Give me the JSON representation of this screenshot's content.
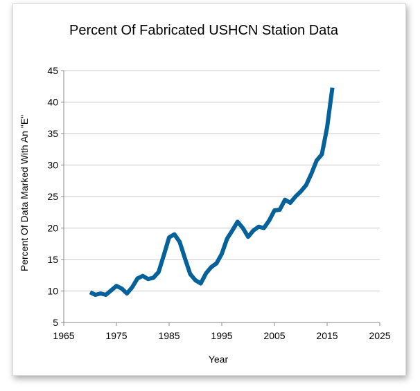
{
  "chart_data": {
    "type": "line",
    "title": "Percent Of Fabricated USHCN Station Data",
    "xlabel": "Year",
    "ylabel": "Percent Of Data Marked With An \"E\"",
    "xlim": [
      1965,
      2025
    ],
    "ylim": [
      5,
      45
    ],
    "xticks": [
      1965,
      1975,
      1985,
      1995,
      2005,
      2015,
      2025
    ],
    "yticks": [
      5,
      10,
      15,
      20,
      25,
      30,
      35,
      40,
      45
    ],
    "grid": "horizontal",
    "legend": "none",
    "series": [
      {
        "name": "Percent Of Data Marked With An \"E\"",
        "color": "#04619a",
        "x": [
          1970,
          1971,
          1972,
          1973,
          1974,
          1975,
          1976,
          1977,
          1978,
          1979,
          1980,
          1981,
          1982,
          1983,
          1984,
          1985,
          1986,
          1987,
          1988,
          1989,
          1990,
          1991,
          1992,
          1993,
          1994,
          1995,
          1996,
          1997,
          1998,
          1999,
          2000,
          2001,
          2002,
          2003,
          2004,
          2005,
          2006,
          2007,
          2008,
          2009,
          2010,
          2011,
          2012,
          2013,
          2014,
          2015,
          2016
        ],
        "values": [
          9.8,
          9.4,
          9.6,
          9.4,
          10.1,
          10.8,
          10.4,
          9.6,
          10.6,
          12.0,
          12.4,
          11.9,
          12.1,
          13.0,
          15.7,
          18.5,
          19.0,
          17.8,
          15.2,
          12.7,
          11.7,
          11.2,
          12.8,
          13.8,
          14.4,
          15.9,
          18.3,
          19.6,
          21.0,
          20.0,
          18.6,
          19.6,
          20.2,
          20.0,
          21.2,
          22.8,
          22.9,
          24.5,
          24.0,
          25.0,
          25.8,
          26.8,
          28.6,
          30.7,
          31.7,
          36.0,
          42.3
        ]
      }
    ]
  }
}
